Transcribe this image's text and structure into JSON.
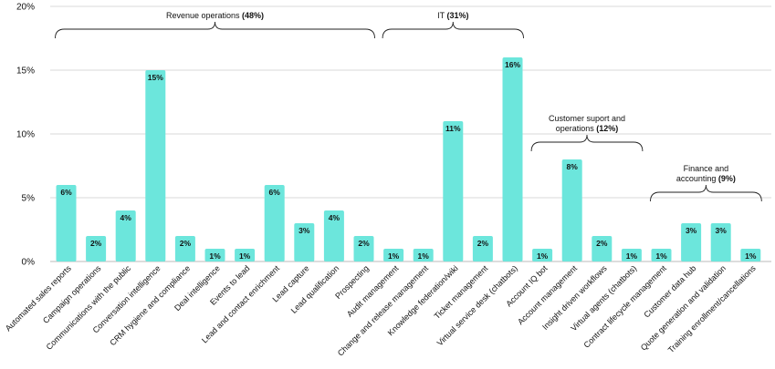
{
  "chart_data": {
    "type": "bar",
    "categories": [
      "Automated sales reports",
      "Campaign operations",
      "Communications with the public",
      "Conversation intelligence",
      "CRM hygiene and compliance",
      "Deal intelligence",
      "Events to lead",
      "Lead and contact enrichment",
      "Lead capture",
      "Lead qualification",
      "Prospecting",
      "Audit management",
      "Change and release management",
      "Knowledge federation/wiki",
      "Ticket management",
      "Virtual service desk (chatbots)",
      "Account IQ bot",
      "Account management",
      "Insight driven workflows",
      "Virtual agents (chatbots)",
      "Contract lifecycle management",
      "Customer data hub",
      "Quote generation and validation",
      "Training enrollment/cancellations"
    ],
    "values": [
      6,
      2,
      4,
      15,
      2,
      1,
      1,
      6,
      3,
      4,
      2,
      1,
      1,
      11,
      2,
      16,
      1,
      8,
      2,
      1,
      1,
      3,
      3,
      1
    ],
    "data_labels": [
      "6%",
      "2%",
      "4%",
      "15%",
      "2%",
      "1%",
      "1%",
      "6%",
      "3%",
      "4%",
      "2%",
      "1%",
      "1%",
      "11%",
      "2%",
      "16%",
      "1%",
      "8%",
      "2%",
      "1%",
      "1%",
      "3%",
      "3%",
      "1%"
    ],
    "y_ticks": [
      {
        "value": 0,
        "label": "0%"
      },
      {
        "value": 5,
        "label": "5%"
      },
      {
        "value": 10,
        "label": "10%"
      },
      {
        "value": 15,
        "label": "15%"
      },
      {
        "value": 20,
        "label": "20%"
      }
    ],
    "ylim": [
      0,
      20
    ],
    "grid": true,
    "bar_color": "#6ce6dc",
    "groups": [
      {
        "lines": [
          {
            "text": "Revenue operations ",
            "bold": "(48%)"
          }
        ],
        "start": 0,
        "end": 10
      },
      {
        "lines": [
          {
            "text": "IT ",
            "bold": "(31%)"
          }
        ],
        "start": 11,
        "end": 15
      },
      {
        "lines": [
          {
            "text": "Customer suport and",
            "bold": ""
          },
          {
            "text": "operations ",
            "bold": "(12%)"
          }
        ],
        "start": 16,
        "end": 19
      },
      {
        "lines": [
          {
            "text": "Finance and",
            "bold": ""
          },
          {
            "text": "accounting ",
            "bold": "(9%)"
          }
        ],
        "start": 20,
        "end": 23
      }
    ]
  }
}
